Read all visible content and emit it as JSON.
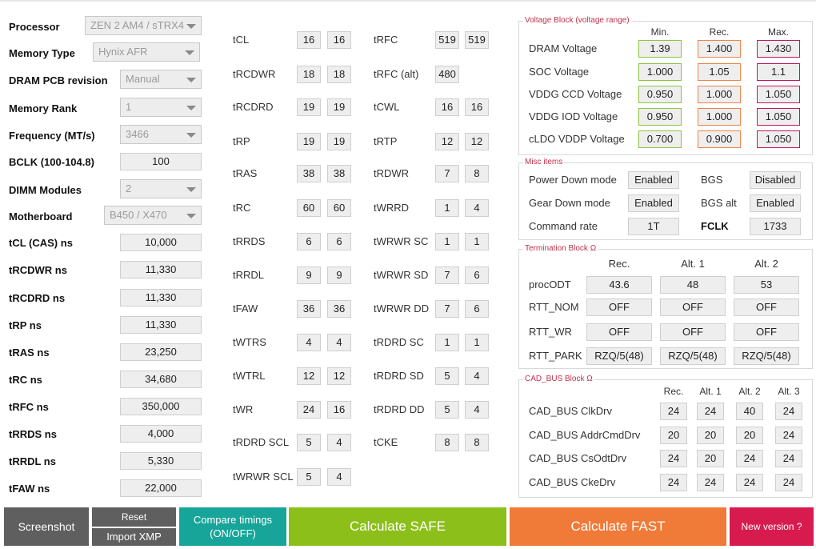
{
  "left": {
    "processor": {
      "label": "Processor",
      "value": "ZEN 2 AM4 / sTRX4"
    },
    "memory_type": {
      "label": "Memory Type",
      "value": "Hynix AFR"
    },
    "pcb": {
      "label": "DRAM PCB revision",
      "value": "Manual"
    },
    "rank": {
      "label": "Memory Rank",
      "value": "1"
    },
    "frequency": {
      "label": "Frequency (MT/s)",
      "value": "3466"
    },
    "bclk": {
      "label": "BCLK (100-104.8)",
      "value": "100"
    },
    "dimm": {
      "label": "DIMM Modules",
      "value": "2"
    },
    "motherboard": {
      "label": "Motherboard",
      "value": "B450 / X470"
    },
    "ns": [
      {
        "label": "tCL (CAS) ns",
        "value": "10,000"
      },
      {
        "label": "tRCDWR ns",
        "value": "11,330"
      },
      {
        "label": "tRCDRD ns",
        "value": "11,330"
      },
      {
        "label": "tRP ns",
        "value": "11,330"
      },
      {
        "label": "tRAS ns",
        "value": "23,250"
      },
      {
        "label": "tRC ns",
        "value": "34,680"
      },
      {
        "label": "tRFC ns",
        "value": "350,000"
      },
      {
        "label": "tRRDS ns",
        "value": "4,000"
      },
      {
        "label": "tRRDL ns",
        "value": "5,330"
      },
      {
        "label": "tFAW ns",
        "value": "22,000"
      }
    ]
  },
  "timings_a": [
    {
      "name": "tCL",
      "v1": "16",
      "v2": "16"
    },
    {
      "name": "tRCDWR",
      "v1": "18",
      "v2": "18"
    },
    {
      "name": "tRCDRD",
      "v1": "19",
      "v2": "19"
    },
    {
      "name": "tRP",
      "v1": "19",
      "v2": "19"
    },
    {
      "name": "tRAS",
      "v1": "38",
      "v2": "38"
    },
    {
      "name": "tRC",
      "v1": "60",
      "v2": "60"
    },
    {
      "name": "tRRDS",
      "v1": "6",
      "v2": "6"
    },
    {
      "name": "tRRDL",
      "v1": "9",
      "v2": "9"
    },
    {
      "name": "tFAW",
      "v1": "36",
      "v2": "36"
    },
    {
      "name": "tWTRS",
      "v1": "4",
      "v2": "4"
    },
    {
      "name": "tWTRL",
      "v1": "12",
      "v2": "12"
    },
    {
      "name": "tWR",
      "v1": "24",
      "v2": "16"
    },
    {
      "name": "tRDRD SCL",
      "v1": "5",
      "v2": "4"
    },
    {
      "name": "tWRWR SCL",
      "v1": "5",
      "v2": "4"
    }
  ],
  "timings_b": [
    {
      "name": "tRFC",
      "v1": "519",
      "v2": "519"
    },
    {
      "name": "tRFC (alt)",
      "v1": "480",
      "v2": ""
    },
    {
      "name": "tCWL",
      "v1": "16",
      "v2": "16"
    },
    {
      "name": "tRTP",
      "v1": "12",
      "v2": "12"
    },
    {
      "name": "tRDWR",
      "v1": "7",
      "v2": "8"
    },
    {
      "name": "tWRRD",
      "v1": "1",
      "v2": "4"
    },
    {
      "name": "tWRWR SC",
      "v1": "1",
      "v2": "1"
    },
    {
      "name": "tWRWR SD",
      "v1": "7",
      "v2": "6"
    },
    {
      "name": "tWRWR DD",
      "v1": "7",
      "v2": "6"
    },
    {
      "name": "tRDRD SC",
      "v1": "1",
      "v2": "1"
    },
    {
      "name": "tRDRD SD",
      "v1": "5",
      "v2": "4"
    },
    {
      "name": "tRDRD DD",
      "v1": "5",
      "v2": "4"
    },
    {
      "name": "tCKE",
      "v1": "8",
      "v2": "8"
    }
  ],
  "voltage": {
    "title": "Voltage Block (voltage range)",
    "headers": [
      "Min.",
      "Rec.",
      "Max."
    ],
    "rows": [
      {
        "label": "DRAM Voltage",
        "min": "1.39",
        "rec": "1.400",
        "max": "1.430"
      },
      {
        "label": "SOC Voltage",
        "min": "1.000",
        "rec": "1.05",
        "max": "1.1"
      },
      {
        "label": "VDDG  CCD Voltage",
        "min": "0.950",
        "rec": "1.000",
        "max": "1.050"
      },
      {
        "label": "VDDG  IOD Voltage",
        "min": "0.950",
        "rec": "1.000",
        "max": "1.050"
      },
      {
        "label": "cLDO VDDP Voltage",
        "min": "0.700",
        "rec": "0.900",
        "max": "1.050"
      }
    ],
    "colors": {
      "min": "#8cc63f",
      "rec": "#f0844a",
      "max": "#c2185b"
    }
  },
  "misc": {
    "title": "Misc items",
    "power_down": {
      "label": "Power Down mode",
      "value": "Enabled"
    },
    "bgs": {
      "label": "BGS",
      "value": "Disabled"
    },
    "gear_down": {
      "label": "Gear Down mode",
      "value": "Enabled"
    },
    "bgs_alt": {
      "label": "BGS alt",
      "value": "Enabled"
    },
    "command_rate": {
      "label": "Command rate",
      "value": "1T"
    },
    "fclk": {
      "label": "FCLK",
      "value": "1733"
    }
  },
  "termination": {
    "title": "Termination Block Ω",
    "headers": [
      "Rec.",
      "Alt. 1",
      "Alt. 2"
    ],
    "rows": [
      {
        "label": "procODT",
        "values": [
          "43.6",
          "48",
          "53"
        ]
      },
      {
        "label": "RTT_NOM",
        "values": [
          "OFF",
          "OFF",
          "OFF"
        ]
      },
      {
        "label": "RTT_WR",
        "values": [
          "OFF",
          "OFF",
          "OFF"
        ]
      },
      {
        "label": "RTT_PARK",
        "values": [
          "RZQ/5(48)",
          "RZQ/5(48)",
          "RZQ/5(48)"
        ]
      }
    ]
  },
  "cadbus": {
    "title": "CAD_BUS Block Ω",
    "headers": [
      "Rec.",
      "Alt. 1",
      "Alt. 2",
      "Alt. 3"
    ],
    "rows": [
      {
        "label": "CAD_BUS ClkDrv",
        "values": [
          "24",
          "24",
          "40",
          "24"
        ]
      },
      {
        "label": "CAD_BUS AddrCmdDrv",
        "values": [
          "20",
          "20",
          "20",
          "24"
        ]
      },
      {
        "label": "CAD_BUS CsOdtDrv",
        "values": [
          "24",
          "20",
          "24",
          "24"
        ]
      },
      {
        "label": "CAD_BUS CkeDrv",
        "values": [
          "24",
          "24",
          "24",
          "24"
        ]
      }
    ]
  },
  "buttons": {
    "screenshot": "Screenshot",
    "reset": "Reset",
    "import_xmp": "Import XMP",
    "compare_l1": "Compare timings",
    "compare_l2": "(ON/OFF)",
    "safe": "Calculate SAFE",
    "fast": "Calculate FAST",
    "new_version": "New version ?"
  },
  "colors": {
    "screenshot_bg": "#5f5f5f",
    "reset_bg": "#5f5f5f",
    "compare_bg": "#17a59a",
    "safe_bg": "#8cbf1a",
    "fast_bg": "#f07a38",
    "new_version_bg": "#d81b4f",
    "accent_title": "#c0304a"
  }
}
